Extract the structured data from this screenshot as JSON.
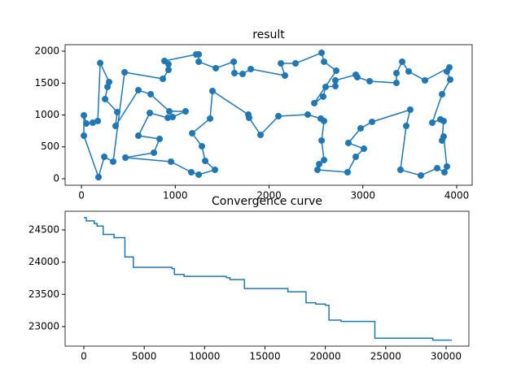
{
  "chart_data": [
    {
      "type": "line",
      "title": "result",
      "color": "#1f77b4",
      "marker": "o",
      "x": [
        182,
        26,
        26,
        52,
        121,
        174,
        200,
        295,
        278,
        252,
        382,
        364,
        607,
        738,
        937,
        1110,
        972,
        920,
        729,
        607,
        833,
        772,
        469,
        954,
        1171,
        1250,
        1423,
        1319,
        1284,
        1180,
        1371,
        1397,
        1779,
        1787,
        1909,
        2100,
        2412,
        2551,
        2586,
        2560,
        2586,
        2534,
        2516,
        2837,
        2924,
        3011,
        2846,
        2976,
        3098,
        3505,
        3462,
        3401,
        3618,
        3792,
        3870,
        3896,
        3861,
        3844,
        3861,
        3827,
        3740,
        3844,
        3931,
        3896,
        3922,
        3662,
        3488,
        3419,
        3358,
        3358,
        3072,
        2941,
        2924,
        2707,
        2707,
        2603,
        2577,
        2482,
        2716,
        2586,
        2560,
        2282,
        2126,
        2169,
        1805,
        1718,
        1631,
        1623,
        1432,
        1250,
        1250,
        1223,
        885,
        928,
        928,
        868,
        460,
        338,
        243,
        182
      ],
      "y": [
        25,
        675,
        994,
        866,
        879,
        905,
        1815,
        1516,
        1440,
        1249,
        1045,
        828,
        1389,
        1325,
        1057,
        1057,
        968,
        956,
        1032,
        675,
        624,
        408,
        331,
        268,
        102,
        64,
        140,
        280,
        510,
        713,
        943,
        1376,
        1006,
        956,
        688,
        981,
        1006,
        943,
        905,
        599,
        293,
        229,
        140,
        102,
        344,
        471,
        561,
        790,
        892,
        1083,
        828,
        140,
        51,
        166,
        102,
        191,
        662,
        599,
        905,
        930,
        879,
        1325,
        1554,
        1682,
        1745,
        1542,
        1682,
        1835,
        1656,
        1503,
        1529,
        1593,
        1631,
        1542,
        1452,
        1440,
        1287,
        1185,
        1694,
        1835,
        1975,
        1809,
        1809,
        1618,
        1720,
        1643,
        1656,
        1835,
        1733,
        1835,
        1949,
        1949,
        1847,
        1796,
        1707,
        1567,
        1669,
        268,
        344,
        25
      ],
      "xlim": [
        -174,
        4165
      ],
      "ylim": [
        -102,
        2102
      ],
      "xticks": [
        0,
        1000,
        2000,
        3000,
        4000
      ],
      "yticks": [
        0,
        500,
        1000,
        1500,
        2000
      ]
    },
    {
      "type": "line",
      "title": "Convergence curve",
      "color": "#1f77b4",
      "drawstyle": "steps-post",
      "x": [
        0,
        200,
        860,
        1100,
        1600,
        2500,
        3400,
        4100,
        7300,
        7500,
        8300,
        11800,
        12100,
        13300,
        16900,
        18400,
        19200,
        20000,
        20300,
        21300,
        24100,
        28900,
        30472
      ],
      "y": [
        24690,
        24640,
        24600,
        24560,
        24430,
        24380,
        24080,
        23920,
        23900,
        23810,
        23780,
        23760,
        23730,
        23590,
        23540,
        23370,
        23350,
        23330,
        23100,
        23080,
        22820,
        22790,
        22790
      ],
      "xlim": [
        -1551,
        31888
      ],
      "ylim": [
        22697,
        24790
      ],
      "xticks": [
        0,
        5000,
        10000,
        15000,
        20000,
        25000,
        30000
      ],
      "yticks": [
        23000,
        23500,
        24000,
        24500
      ]
    }
  ]
}
